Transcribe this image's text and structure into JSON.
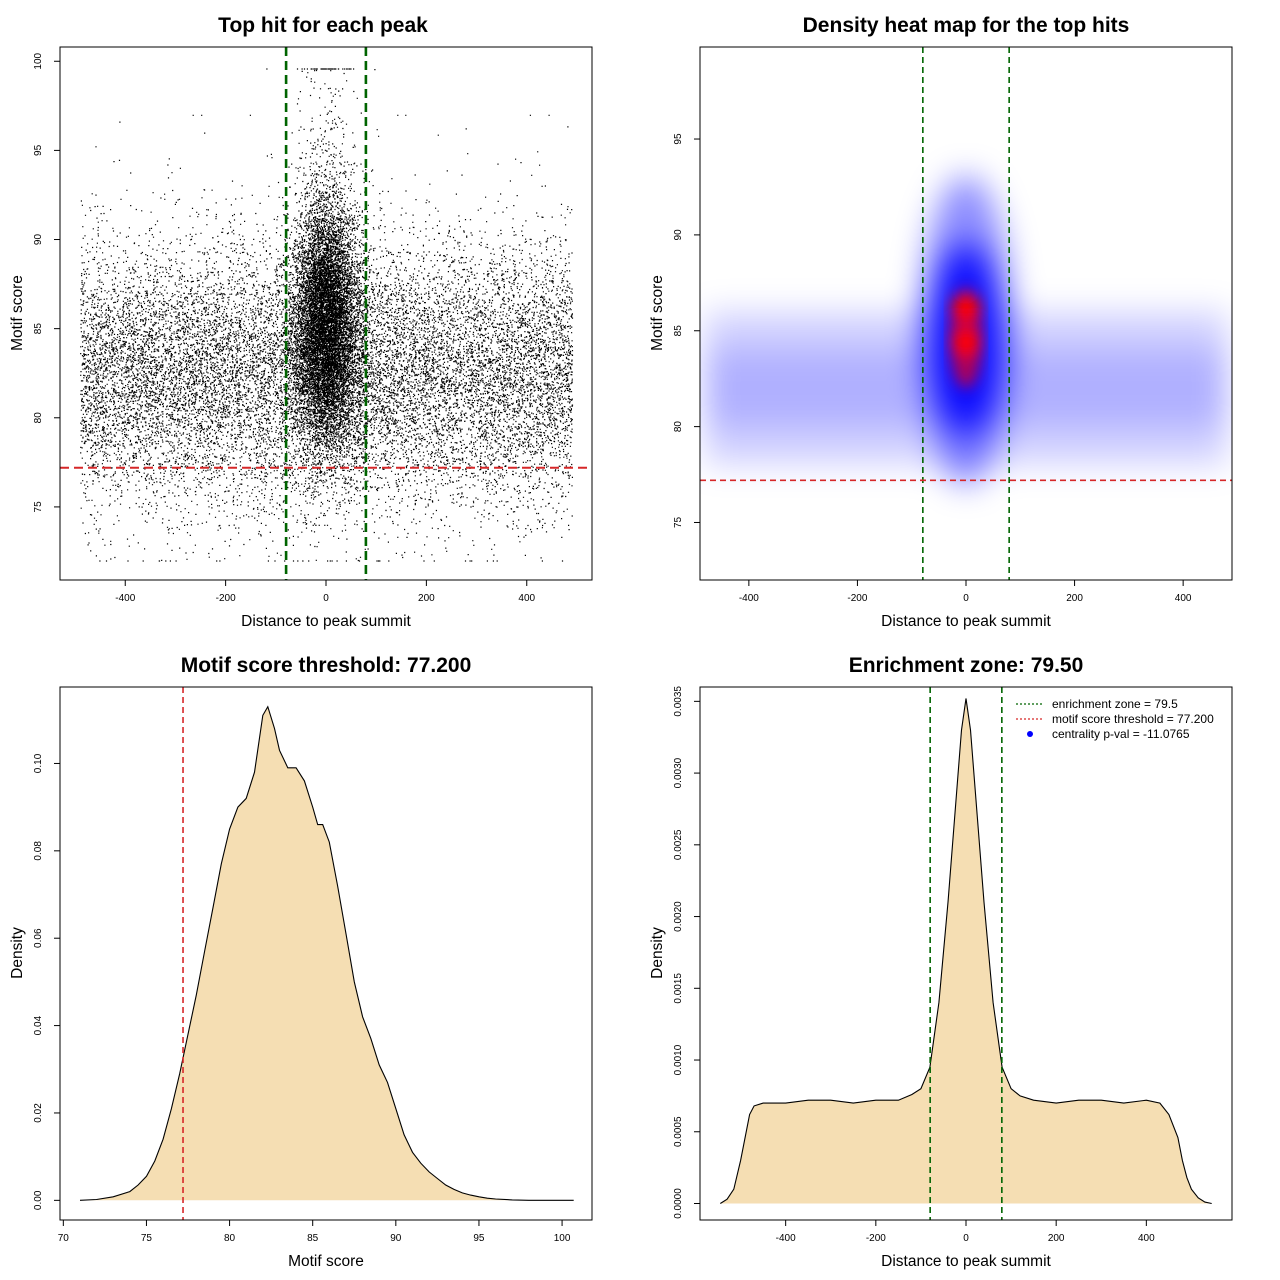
{
  "chart_data": [
    {
      "type": "scatter",
      "title": "Top hit for each peak",
      "xlabel": "Distance to peak summit",
      "ylabel": "Motif score",
      "xlim": [
        -530,
        530
      ],
      "ylim": [
        70.9,
        100.8
      ],
      "xticks": [
        -400,
        -200,
        0,
        200,
        400
      ],
      "yticks": [
        75,
        80,
        85,
        90,
        95,
        100
      ],
      "grid": false,
      "vlines": [
        -79.5,
        79.5
      ],
      "hline": 77.2,
      "x_range_points": [
        -490,
        490
      ],
      "colors": {
        "points": "#000000",
        "vlines": "#006400",
        "hline": "#d62728"
      }
    },
    {
      "type": "heatmap",
      "title": "Density heat map for the top hits",
      "xlabel": "Distance to peak summit",
      "ylabel": "Motif score",
      "xlim": [
        -490,
        490
      ],
      "ylim": [
        72,
        99.8
      ],
      "xticks": [
        -400,
        -200,
        0,
        200,
        400
      ],
      "yticks": [
        75,
        80,
        85,
        90,
        95
      ],
      "grid": false,
      "vlines": [
        -79.5,
        79.5
      ],
      "hline": 77.2,
      "density_peaks": [
        {
          "x": 0,
          "y": 86.2
        },
        {
          "x": 0,
          "y": 84.4
        }
      ],
      "colors": {
        "low": "#ffffff",
        "mid": "#0000ff",
        "high": "#ff0000",
        "vlines": "#006400",
        "hline": "#d62728"
      }
    },
    {
      "type": "area",
      "title": "Motif score threshold: 77.200",
      "xlabel": "Motif score",
      "ylabel": "Density",
      "xlim": [
        69.8,
        101.8
      ],
      "ylim": [
        -0.0045,
        0.1175
      ],
      "xticks": [
        70,
        75,
        80,
        85,
        90,
        95,
        100
      ],
      "yticks": [
        0.0,
        0.02,
        0.04,
        0.06,
        0.08,
        0.1
      ],
      "ytick_labels": [
        "0.00",
        "0.02",
        "0.04",
        "0.06",
        "0.08",
        "0.10"
      ],
      "grid": false,
      "vline": 77.2,
      "x": [
        71,
        72,
        73,
        74,
        74.5,
        75,
        75.5,
        76,
        76.5,
        77,
        77.5,
        78,
        78.5,
        79,
        79.5,
        80,
        80.5,
        81,
        81.5,
        82,
        82.3,
        82.7,
        83,
        83.5,
        84,
        84.5,
        85,
        85.3,
        85.6,
        86,
        86.5,
        87,
        87.5,
        88,
        88.5,
        89,
        89.5,
        90,
        90.5,
        91,
        91.5,
        92,
        92.5,
        93,
        93.5,
        94,
        94.5,
        95,
        95.5,
        96,
        97,
        98,
        100.7
      ],
      "y": [
        0.0,
        0.0002,
        0.0008,
        0.002,
        0.0035,
        0.0055,
        0.009,
        0.014,
        0.021,
        0.029,
        0.038,
        0.047,
        0.057,
        0.067,
        0.077,
        0.085,
        0.09,
        0.092,
        0.098,
        0.111,
        0.113,
        0.108,
        0.103,
        0.099,
        0.099,
        0.096,
        0.09,
        0.086,
        0.086,
        0.082,
        0.072,
        0.061,
        0.05,
        0.042,
        0.037,
        0.031,
        0.027,
        0.021,
        0.015,
        0.011,
        0.0085,
        0.0065,
        0.005,
        0.0035,
        0.0025,
        0.0017,
        0.0012,
        0.0008,
        0.0005,
        0.0003,
        0.0001,
        0.0,
        0.0
      ],
      "colors": {
        "fill": "#f5deb3",
        "line": "#000000",
        "vline": "#d62728"
      }
    },
    {
      "type": "area",
      "title": "Enrichment zone: 79.50",
      "xlabel": "Distance to peak summit",
      "ylabel": "Density",
      "xlim": [
        -590,
        590
      ],
      "ylim": [
        -0.000115,
        0.0036
      ],
      "xticks": [
        -400,
        -200,
        0,
        200,
        400
      ],
      "yticks": [
        0,
        0.0005,
        0.001,
        0.0015,
        0.002,
        0.0025,
        0.003,
        0.0035
      ],
      "ytick_labels": [
        "0.0000",
        "0.0005",
        "0.0010",
        "0.0015",
        "0.0020",
        "0.0025",
        "0.0030",
        "0.0035"
      ],
      "grid": false,
      "vlines": [
        -79.5,
        79.5
      ],
      "x": [
        -545,
        -530,
        -515,
        -500,
        -490,
        -480,
        -470,
        -450,
        -400,
        -350,
        -300,
        -250,
        -200,
        -150,
        -120,
        -100,
        -80,
        -60,
        -40,
        -20,
        -10,
        0,
        10,
        20,
        40,
        60,
        80,
        100,
        120,
        150,
        200,
        250,
        300,
        350,
        400,
        430,
        450,
        470,
        480,
        490,
        500,
        515,
        530,
        545
      ],
      "y": [
        0,
        3e-05,
        0.0001,
        0.0003,
        0.00046,
        0.00062,
        0.00068,
        0.0007,
        0.0007,
        0.00072,
        0.00072,
        0.0007,
        0.00072,
        0.00072,
        0.00076,
        0.0008,
        0.00095,
        0.0014,
        0.0021,
        0.0029,
        0.0033,
        0.00352,
        0.0033,
        0.0029,
        0.0021,
        0.0014,
        0.00095,
        0.0008,
        0.00075,
        0.00072,
        0.0007,
        0.00072,
        0.00072,
        0.0007,
        0.00072,
        0.0007,
        0.00062,
        0.00046,
        0.0003,
        0.00018,
        0.0001,
        4e-05,
        1e-05,
        0
      ],
      "legend": {
        "position": "top-right",
        "entries": [
          "enrichment zone = 79.5",
          "motif score threshold = 77.200",
          "centrality p-val = -11.0765"
        ]
      },
      "colors": {
        "fill": "#f5deb3",
        "line": "#000000",
        "vlines": "#006400",
        "threshold_legend": "#d62728",
        "pval_legend": "#0000ff"
      }
    }
  ]
}
